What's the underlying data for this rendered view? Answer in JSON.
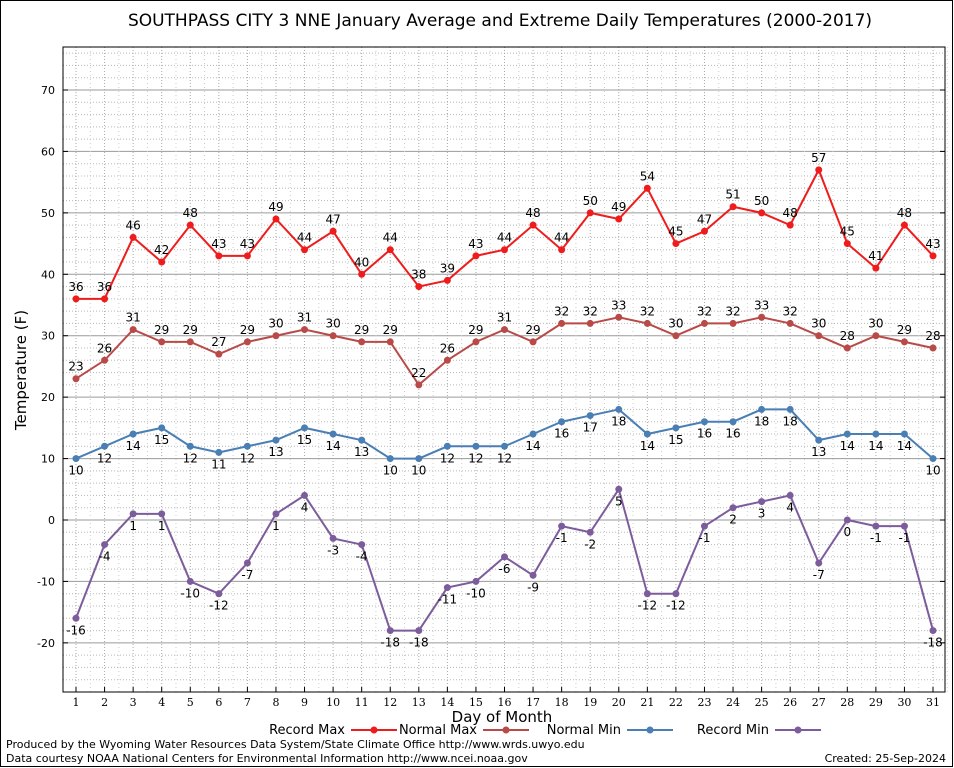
{
  "chart_data": {
    "type": "line",
    "title": "SOUTHPASS CITY 3 NNE January Average and Extreme Daily Temperatures (2000-2017)",
    "xlabel": "Day of Month",
    "ylabel": "Temperature (F)",
    "ylim": [
      -28,
      77
    ],
    "yticks": [
      -20,
      -10,
      0,
      10,
      20,
      30,
      40,
      50,
      60,
      70
    ],
    "x": [
      1,
      2,
      3,
      4,
      5,
      6,
      7,
      8,
      9,
      10,
      11,
      12,
      13,
      14,
      15,
      16,
      17,
      18,
      19,
      20,
      21,
      22,
      23,
      24,
      25,
      26,
      27,
      28,
      29,
      30,
      31
    ],
    "grid": true,
    "legend_position": "bottom",
    "series": [
      {
        "name": "Record Max",
        "color": "#ee1c1c",
        "label_side": "above",
        "values": [
          36,
          36,
          46,
          42,
          48,
          43,
          43,
          49,
          44,
          47,
          40,
          44,
          38,
          39,
          43,
          44,
          48,
          44,
          50,
          49,
          54,
          45,
          47,
          51,
          50,
          48,
          57,
          45,
          41,
          48,
          43
        ]
      },
      {
        "name": "Normal Max",
        "color": "#b94a48",
        "label_side": "above",
        "values": [
          23,
          26,
          31,
          29,
          29,
          27,
          29,
          30,
          31,
          30,
          29,
          29,
          22,
          26,
          29,
          31,
          29,
          32,
          32,
          33,
          32,
          30,
          32,
          32,
          33,
          32,
          30,
          28,
          30,
          29,
          28
        ]
      },
      {
        "name": "Normal Min",
        "color": "#4a7fb5",
        "label_side": "below",
        "values": [
          10,
          12,
          14,
          15,
          12,
          11,
          12,
          13,
          15,
          14,
          13,
          10,
          10,
          12,
          12,
          12,
          14,
          16,
          17,
          18,
          14,
          15,
          16,
          16,
          18,
          18,
          13,
          14,
          14,
          14,
          10
        ]
      },
      {
        "name": "Record Min",
        "color": "#7d5c9c",
        "label_side": "below",
        "values": [
          -16,
          -4,
          1,
          1,
          -10,
          -12,
          -7,
          1,
          4,
          -3,
          -4,
          -18,
          -18,
          -11,
          -10,
          -6,
          -9,
          -1,
          -2,
          5,
          -12,
          -12,
          -1,
          2,
          3,
          4,
          -7,
          0,
          -1,
          -1,
          -18
        ]
      }
    ]
  },
  "footer": {
    "credit_line_1": "Produced by the Wyoming Water Resources Data System/State Climate Office http://www.wrds.uwyo.edu",
    "credit_line_2": "Data courtesy NOAA National Centers for Environmental Information http://www.ncei.noaa.gov",
    "created": "Created:  25-Sep-2024"
  }
}
